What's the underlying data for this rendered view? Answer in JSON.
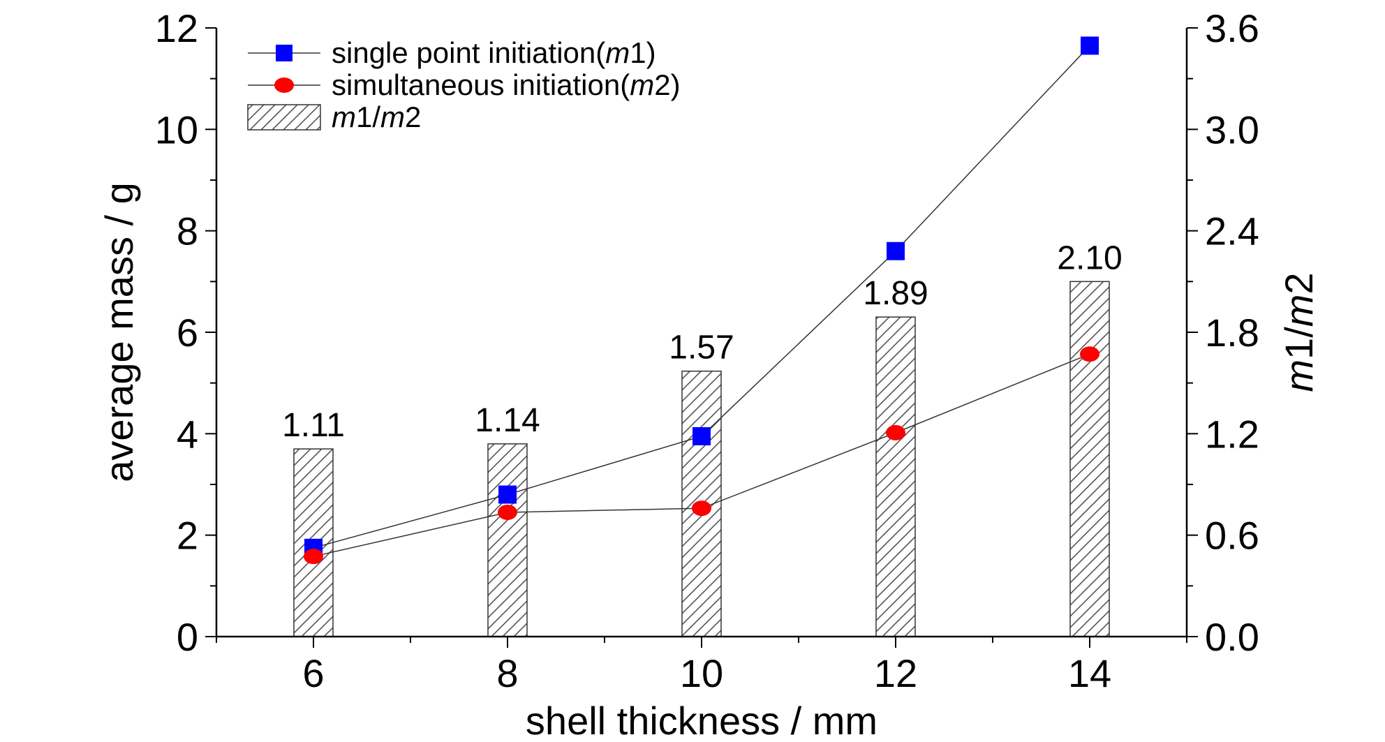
{
  "chart_data": {
    "type": "bar",
    "x": [
      6,
      8,
      10,
      12,
      14
    ],
    "x_tick_labels": [
      "6",
      "8",
      "10",
      "12",
      "14"
    ],
    "xlabel": "shell thickness / mm",
    "ylabel": "average mass / g",
    "y2label": "m1/m2",
    "xlim": [
      5,
      15
    ],
    "ylim": [
      0,
      12
    ],
    "y2lim": [
      0,
      3.6
    ],
    "y_ticks": [
      0,
      2,
      4,
      6,
      8,
      10,
      12
    ],
    "y_tick_labels": [
      "0",
      "2",
      "4",
      "6",
      "8",
      "10",
      "12"
    ],
    "y2_ticks": [
      0.0,
      0.6,
      1.2,
      1.8,
      2.4,
      3.0,
      3.6
    ],
    "y2_tick_labels": [
      "0.0",
      "0.6",
      "1.2",
      "1.8",
      "2.4",
      "3.0",
      "3.6"
    ],
    "series": [
      {
        "name": "single point initiation(m1)",
        "kind": "line",
        "marker": "square",
        "axis": "left",
        "color": "#0000ff",
        "values": [
          1.75,
          2.8,
          3.95,
          7.6,
          11.65
        ]
      },
      {
        "name": "simultaneous initiation(m2)",
        "kind": "line",
        "marker": "circle",
        "axis": "left",
        "color": "#ff0000",
        "values": [
          1.58,
          2.45,
          2.53,
          4.02,
          5.57
        ]
      },
      {
        "name": "m1/m2",
        "kind": "bar",
        "pattern": "hatched",
        "axis": "right",
        "values": [
          1.11,
          1.14,
          1.57,
          1.89,
          2.1
        ],
        "labels": [
          "1.11",
          "1.14",
          "1.57",
          "1.89",
          "2.10"
        ]
      }
    ],
    "legend": {
      "position": "top-left",
      "entries": [
        {
          "prefix": "single point initiation(",
          "italic": "m",
          "suffix": "1)"
        },
        {
          "prefix": "simultaneous initiation(",
          "italic": "m",
          "suffix": "2)"
        },
        {
          "prefix": "",
          "italic": "m",
          "suffix": "1/",
          "italic2": "m",
          "suffix2": "2"
        }
      ]
    },
    "grid": false,
    "colors": {
      "line": "#333333",
      "axis": "#000000",
      "bar_fill": "#ffffff",
      "hatch": "#555555"
    }
  }
}
